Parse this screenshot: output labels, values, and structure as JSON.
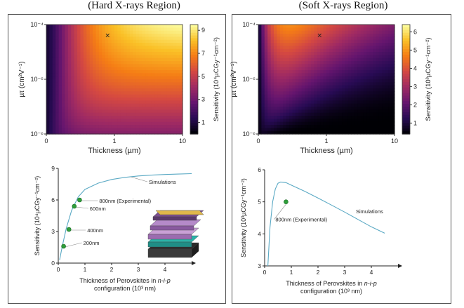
{
  "left_title": "(Hard X-rays Region)",
  "right_title": "(Soft X-rays Region)",
  "chart_data": [
    {
      "type": "heatmap",
      "panel": "hard",
      "xlabel": "Thickness (µm)",
      "ylabel": "µτ (cm²V⁻¹)",
      "colorbar_label": "Sensitivity (10⁴µCGy⁻¹cm⁻²)",
      "x_ticks": [
        "0",
        "1",
        "10"
      ],
      "y_ticks": [
        "10⁻⁴",
        "10⁻⁵",
        "10⁻⁶"
      ],
      "colorbar_ticks": [
        "9",
        "7",
        "5",
        "3",
        "1"
      ],
      "colorbar_range": [
        0,
        9.5
      ],
      "marker": {
        "symbol": "×",
        "thickness_um": 0.8,
        "mu_tau": 6e-05
      }
    },
    {
      "type": "heatmap",
      "panel": "soft",
      "xlabel": "Thickness (µm)",
      "ylabel": "µτ (cm²V⁻¹)",
      "colorbar_label": "Sensitivity (10³µCGy⁻¹cm⁻²)",
      "x_ticks": [
        "0",
        "1",
        "10"
      ],
      "y_ticks": [
        "10⁻⁴",
        "10⁻⁵",
        "10⁻⁶"
      ],
      "colorbar_ticks": [
        "6",
        "5",
        "4",
        "3",
        "2",
        "1"
      ],
      "colorbar_range": [
        0.4,
        6.4
      ],
      "marker": {
        "symbol": "×",
        "thickness_um": 0.8,
        "mu_tau": 6e-05
      }
    },
    {
      "type": "line",
      "panel": "hard",
      "xlabel_line1": "Thickness of Perovskites in ",
      "xlabel_italic": "n-i-p",
      "xlabel_line2": "configuration (10³ nm)",
      "ylabel": "Sensitivity (10⁴µCGy⁻¹cm⁻²)",
      "xlim": [
        0,
        5
      ],
      "ylim": [
        0,
        9
      ],
      "x_ticks": [
        0,
        1,
        2,
        3,
        4
      ],
      "y_ticks": [
        0,
        3,
        6,
        9
      ],
      "series": [
        {
          "name": "Simulations",
          "x": [
            0.05,
            0.15,
            0.3,
            0.5,
            0.75,
            1.0,
            1.5,
            2.0,
            2.5,
            3.0,
            3.5,
            4.0,
            4.5,
            5.0
          ],
          "y": [
            0.3,
            1.6,
            3.3,
            5.0,
            6.3,
            7.0,
            7.6,
            7.95,
            8.15,
            8.28,
            8.36,
            8.42,
            8.46,
            8.5
          ]
        }
      ],
      "points": [
        {
          "x": 0.2,
          "y": 1.6,
          "label": "200nm"
        },
        {
          "x": 0.4,
          "y": 3.2,
          "label": "400nm"
        },
        {
          "x": 0.6,
          "y": 5.4,
          "label": "600nm"
        },
        {
          "x": 0.8,
          "y": 6.0,
          "label": "800nm (Experimental)"
        }
      ],
      "series_label": "Simulations"
    },
    {
      "type": "line",
      "panel": "soft",
      "xlabel_line1": "Thickness of Perovskites in ",
      "xlabel_italic": "n-i-p",
      "xlabel_line2": "configuration (10³ nm)",
      "ylabel": "Sensitivity (10³µCGy⁻¹cm⁻²)",
      "xlim": [
        0,
        5
      ],
      "ylim": [
        3,
        6
      ],
      "x_ticks": [
        0,
        1,
        2,
        3,
        4
      ],
      "y_ticks": [
        3,
        4,
        5,
        6
      ],
      "series": [
        {
          "name": "Simulations",
          "x": [
            0.12,
            0.2,
            0.3,
            0.4,
            0.5,
            0.6,
            0.8,
            1.0,
            1.5,
            2.0,
            2.5,
            3.0,
            3.5,
            4.0,
            4.5
          ],
          "y": [
            3.0,
            4.2,
            5.0,
            5.4,
            5.58,
            5.62,
            5.6,
            5.52,
            5.33,
            5.12,
            4.9,
            4.68,
            4.45,
            4.22,
            4.02
          ]
        }
      ],
      "points": [
        {
          "x": 0.8,
          "y": 5.0,
          "label": "800nm (Experimental)"
        }
      ],
      "series_label": "Simulations"
    }
  ]
}
